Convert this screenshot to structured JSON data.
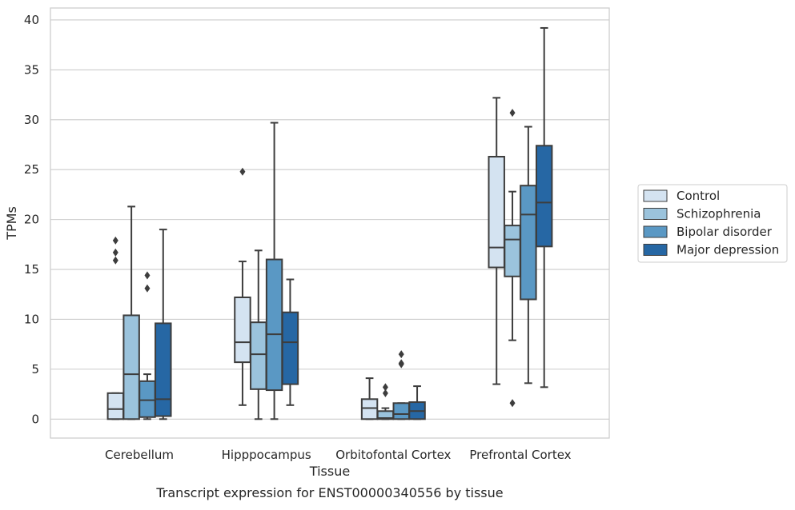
{
  "caption": "Transcript expression for ENST00000340556 by tissue",
  "chart_data": {
    "type": "boxplot",
    "xlabel": "Tissue",
    "ylabel": "TPMs",
    "ylim": [
      -1.9,
      41.2
    ],
    "yticks": [
      0,
      5,
      10,
      15,
      20,
      25,
      30,
      35,
      40
    ],
    "grid": "horizontal",
    "legend_position": "right",
    "categories": [
      "Cerebellum",
      "Hipppocampus",
      "Orbitofontal Cortex",
      "Prefrontal Cortex"
    ],
    "series": [
      {
        "name": "Control",
        "color": "#d4e3f1",
        "boxes": [
          {
            "whisker_low": 0,
            "q1": 0,
            "median": 1.0,
            "q3": 2.6,
            "whisker_high": 2.6,
            "outliers": [
              15.9,
              16.7,
              17.9
            ]
          },
          {
            "whisker_low": 1.4,
            "q1": 5.7,
            "median": 7.7,
            "q3": 12.2,
            "whisker_high": 15.8,
            "outliers": [
              24.8
            ]
          },
          {
            "whisker_low": 0,
            "q1": 0,
            "median": 1.1,
            "q3": 2.0,
            "whisker_high": 4.1,
            "outliers": []
          },
          {
            "whisker_low": 3.5,
            "q1": 15.2,
            "median": 17.2,
            "q3": 26.3,
            "whisker_high": 32.2,
            "outliers": []
          }
        ]
      },
      {
        "name": "Schizophrenia",
        "color": "#9bc3dc",
        "boxes": [
          {
            "whisker_low": 0,
            "q1": 0,
            "median": 4.5,
            "q3": 10.4,
            "whisker_high": 21.3,
            "outliers": []
          },
          {
            "whisker_low": 0,
            "q1": 3.0,
            "median": 6.5,
            "q3": 9.7,
            "whisker_high": 16.9,
            "outliers": []
          },
          {
            "whisker_low": 0,
            "q1": 0,
            "median": 0.1,
            "q3": 0.8,
            "whisker_high": 1.1,
            "outliers": [
              2.6,
              3.2
            ]
          },
          {
            "whisker_low": 7.9,
            "q1": 14.3,
            "median": 18.0,
            "q3": 19.4,
            "whisker_high": 22.8,
            "outliers": [
              1.6,
              30.7
            ]
          }
        ]
      },
      {
        "name": "Bipolar disorder",
        "color": "#5a98c4",
        "boxes": [
          {
            "whisker_low": 0,
            "q1": 0.2,
            "median": 1.9,
            "q3": 3.8,
            "whisker_high": 4.5,
            "outliers": [
              13.1,
              14.4
            ]
          },
          {
            "whisker_low": 0,
            "q1": 2.9,
            "median": 8.5,
            "q3": 16.0,
            "whisker_high": 29.7,
            "outliers": []
          },
          {
            "whisker_low": 0,
            "q1": 0,
            "median": 0.5,
            "q3": 1.6,
            "whisker_high": 1.6,
            "outliers": [
              5.5,
              5.6,
              6.5
            ]
          },
          {
            "whisker_low": 3.6,
            "q1": 12.0,
            "median": 20.5,
            "q3": 23.4,
            "whisker_high": 29.3,
            "outliers": []
          }
        ]
      },
      {
        "name": "Major depression",
        "color": "#2667a4",
        "boxes": [
          {
            "whisker_low": 0,
            "q1": 0.3,
            "median": 2.0,
            "q3": 9.6,
            "whisker_high": 19.0,
            "outliers": []
          },
          {
            "whisker_low": 1.4,
            "q1": 3.5,
            "median": 7.7,
            "q3": 10.7,
            "whisker_high": 14.0,
            "outliers": []
          },
          {
            "whisker_low": 0,
            "q1": 0,
            "median": 0.8,
            "q3": 1.7,
            "whisker_high": 3.3,
            "outliers": []
          },
          {
            "whisker_low": 3.2,
            "q1": 17.3,
            "median": 21.7,
            "q3": 27.4,
            "whisker_high": 39.2,
            "outliers": []
          }
        ]
      }
    ]
  }
}
